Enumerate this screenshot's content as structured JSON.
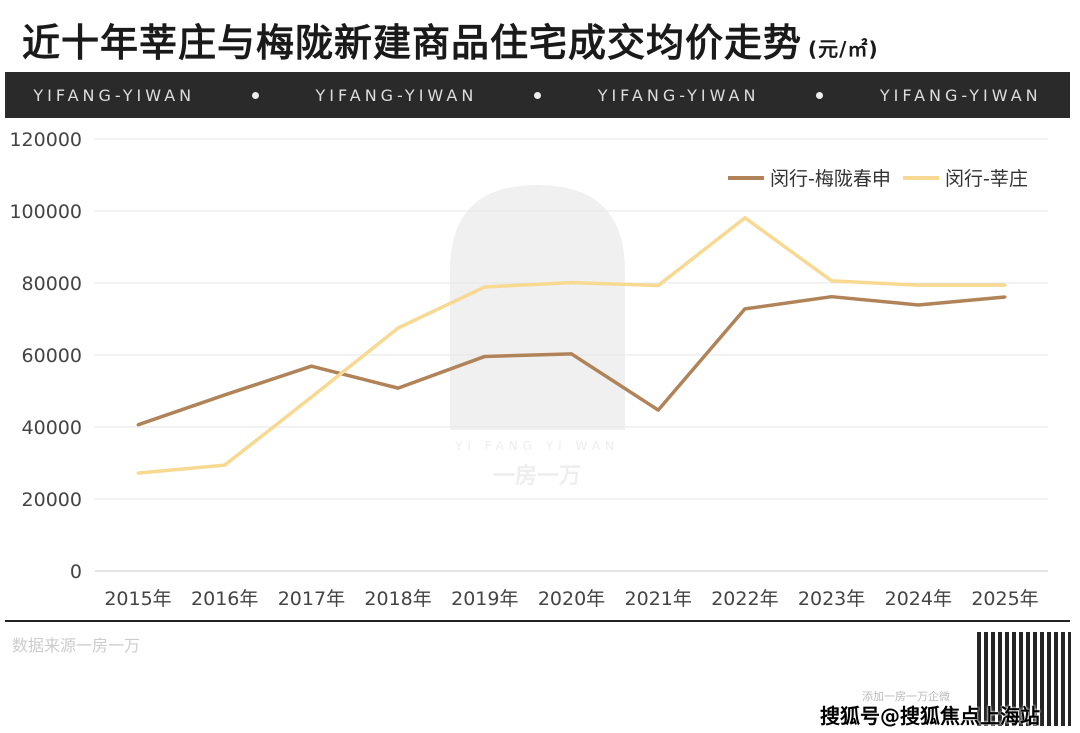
{
  "header": {
    "title": "近十年莘庄与梅陇新建商品住宅成交均价走势",
    "unit": "(元/㎡)"
  },
  "banner": {
    "items": [
      "YIFANG-YIWAN",
      "YIFANG-YIWAN",
      "YIFANG-YIWAN",
      "YIFANG-YIWAN"
    ]
  },
  "footer": {
    "source": "数据来源一房一万",
    "qr_note": "添加一房一万企微",
    "watermark": "搜狐号@搜狐焦点上海站"
  },
  "watermark": {
    "en": "YI FANG YI WAN",
    "cn": "一房一万"
  },
  "chart_data": {
    "type": "line",
    "title": "近十年莘庄与梅陇新建商品住宅成交均价走势",
    "ylabel": "元/㎡",
    "xlabel": "",
    "categories": [
      "2015年",
      "2016年",
      "2017年",
      "2018年",
      "2019年",
      "2020年",
      "2021年",
      "2022年",
      "2023年",
      "2024年",
      "2025年"
    ],
    "ylim": [
      0,
      120000
    ],
    "yticks": [
      "0",
      "20000",
      "40000",
      "60000",
      "80000",
      "100000",
      "120000"
    ],
    "grid": true,
    "legend": "top-right",
    "series": [
      {
        "name": "闵行-梅陇春申",
        "color": "#b08358",
        "values": [
          40600,
          48900,
          56900,
          50800,
          59600,
          60300,
          44700,
          72800,
          76200,
          73900,
          76100
        ]
      },
      {
        "name": "闵行-莘庄",
        "color": "#f8d991",
        "values": [
          27200,
          29400,
          48300,
          67500,
          78900,
          80100,
          79300,
          98100,
          80600,
          79400,
          79400
        ]
      }
    ]
  }
}
